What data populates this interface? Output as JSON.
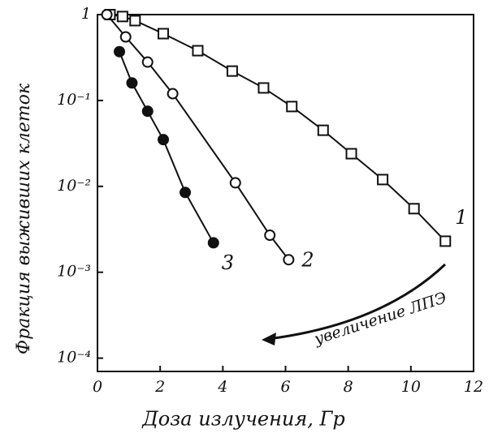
{
  "chart_data": {
    "type": "line",
    "log_y": true,
    "xlabel": "Доза излучения, Гр",
    "ylabel": "Фракция выживших клеток",
    "annotation": "увеличение ЛПЭ",
    "xlim": [
      0,
      12
    ],
    "xticks": [
      0,
      2,
      4,
      6,
      8,
      10,
      12
    ],
    "ylim": [
      7e-05,
      1
    ],
    "yticks": [
      {
        "value": 0.0001,
        "label": "10⁻⁴"
      },
      {
        "value": 0.001,
        "label": "10⁻³"
      },
      {
        "value": 0.01,
        "label": "10⁻²"
      },
      {
        "value": 0.1,
        "label": "10⁻¹"
      },
      1
    ],
    "series": [
      {
        "name": "1",
        "color": "#111",
        "marker": "square",
        "x": [
          0.4,
          0.8,
          1.2,
          2.1,
          3.2,
          4.3,
          5.3,
          6.2,
          7.2,
          8.1,
          9.1,
          10.1,
          11.1
        ],
        "values": [
          1,
          0.95,
          0.85,
          0.6,
          0.38,
          0.22,
          0.14,
          0.085,
          0.045,
          0.024,
          0.012,
          0.0055,
          0.0023
        ]
      },
      {
        "name": "2",
        "color": "#111",
        "marker": "circle",
        "x": [
          0.3,
          0.9,
          1.6,
          2.4,
          4.4,
          5.5,
          6.1
        ],
        "values": [
          1,
          0.55,
          0.28,
          0.12,
          0.011,
          0.0027,
          0.0014
        ]
      },
      {
        "name": "3",
        "color": "#111",
        "marker": "filled-circle",
        "x": [
          0.7,
          1.1,
          1.6,
          2.1,
          2.8,
          3.7
        ],
        "values": [
          0.37,
          0.16,
          0.075,
          0.035,
          0.0085,
          0.0022
        ]
      }
    ]
  }
}
